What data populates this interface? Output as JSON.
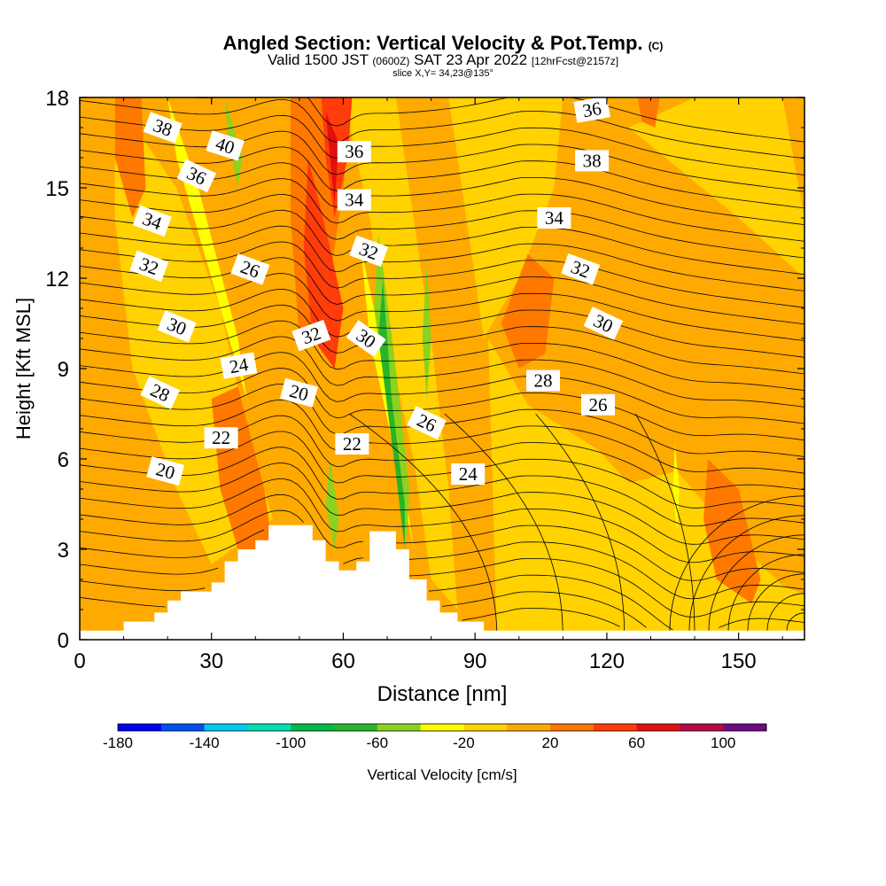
{
  "header": {
    "title": "Angled Section: Vertical Velocity & Pot.Temp.",
    "title_unit": "(C)",
    "valid_prefix": "Valid 1500 JST",
    "valid_utc": "(0600Z)",
    "valid_date": "SAT 23 Apr 2022",
    "forecast": "[12hrFcst@2157z]",
    "slice": "slice X,Y= 34,23@135°"
  },
  "chart_data": {
    "type": "heatmap",
    "title": "Angled Section: Vertical Velocity & Pot.Temp.",
    "xlabel": "Distance [nm]",
    "ylabel": "Height [Kft MSL]",
    "xlim": [
      0,
      165
    ],
    "ylim": [
      0,
      18
    ],
    "x_ticks": [
      "0",
      "30",
      "60",
      "90",
      "120",
      "150"
    ],
    "y_ticks": [
      "0",
      "3",
      "6",
      "9",
      "12",
      "15",
      "18"
    ],
    "colorbar": {
      "label": "Vertical Velocity [cm/s]",
      "tick_labels": [
        "-180",
        "-140",
        "-100",
        "-60",
        "-20",
        "20",
        "60",
        "100"
      ],
      "bins": [
        -180,
        -160,
        -140,
        -120,
        -100,
        -80,
        -60,
        -40,
        -20,
        0,
        20,
        40,
        60,
        80,
        100,
        120
      ],
      "colors": [
        "#0000f0",
        "#0050f0",
        "#00c8f0",
        "#00e0b4",
        "#00b846",
        "#28b428",
        "#8cd21e",
        "#ffff00",
        "#ffd200",
        "#ffaa00",
        "#ff7800",
        "#ff3c0a",
        "#e10f0f",
        "#b40a46",
        "#6e0a82"
      ]
    },
    "terrain": [
      [
        0,
        0.3
      ],
      [
        10,
        0.3
      ],
      [
        10,
        0.6
      ],
      [
        17,
        0.6
      ],
      [
        17,
        0.9
      ],
      [
        20,
        0.9
      ],
      [
        20,
        1.3
      ],
      [
        23,
        1.3
      ],
      [
        23,
        1.6
      ],
      [
        30,
        1.6
      ],
      [
        30,
        1.9
      ],
      [
        33,
        1.9
      ],
      [
        33,
        2.6
      ],
      [
        36,
        2.6
      ],
      [
        36,
        3.0
      ],
      [
        40,
        3.0
      ],
      [
        40,
        3.3
      ],
      [
        43,
        3.3
      ],
      [
        43,
        3.8
      ],
      [
        53,
        3.8
      ],
      [
        53,
        3.3
      ],
      [
        56,
        3.3
      ],
      [
        56,
        2.6
      ],
      [
        59,
        2.6
      ],
      [
        59,
        2.3
      ],
      [
        63,
        2.3
      ],
      [
        63,
        2.6
      ],
      [
        66,
        2.6
      ],
      [
        66,
        3.6
      ],
      [
        72,
        3.6
      ],
      [
        72,
        3.0
      ],
      [
        75,
        3.0
      ],
      [
        75,
        2.0
      ],
      [
        79,
        2.0
      ],
      [
        79,
        1.3
      ],
      [
        82,
        1.3
      ],
      [
        82,
        0.9
      ],
      [
        86,
        0.9
      ],
      [
        86,
        0.6
      ],
      [
        92,
        0.6
      ],
      [
        92,
        0.3
      ],
      [
        165,
        0.3
      ]
    ],
    "theta_contour_labels": [
      "20",
      "22",
      "24",
      "26",
      "28",
      "30",
      "32",
      "34",
      "36",
      "38",
      "40"
    ],
    "velocity_regions": [
      {
        "bin": "0 to 20",
        "points": [
          [
            0,
            0
          ],
          [
            165,
            0
          ],
          [
            165,
            18
          ],
          [
            0,
            18
          ]
        ]
      },
      {
        "bin": "-20 to 0",
        "points": [
          [
            8,
            18
          ],
          [
            22,
            15
          ],
          [
            32,
            11
          ],
          [
            38,
            7
          ],
          [
            44,
            4
          ],
          [
            30,
            2.5
          ],
          [
            22,
            5
          ],
          [
            12,
            9
          ],
          [
            8,
            14
          ]
        ]
      },
      {
        "bin": "-20 to 0",
        "points": [
          [
            60,
            18
          ],
          [
            66,
            14
          ],
          [
            70,
            10
          ],
          [
            76,
            6
          ],
          [
            80,
            2
          ],
          [
            86,
            1
          ],
          [
            84,
            5
          ],
          [
            80,
            10
          ],
          [
            76,
            14
          ],
          [
            72,
            18
          ]
        ]
      },
      {
        "bin": "-20 to 0",
        "points": [
          [
            84,
            18
          ],
          [
            110,
            18
          ],
          [
            108,
            15
          ],
          [
            100,
            12
          ],
          [
            92,
            10
          ],
          [
            88,
            14
          ]
        ]
      },
      {
        "bin": "-20 to 0",
        "points": [
          [
            93,
            10
          ],
          [
            102,
            7.8
          ],
          [
            118,
            6.3
          ],
          [
            125,
            5.2
          ],
          [
            136,
            5.6
          ],
          [
            150,
            3.2
          ],
          [
            160,
            1.8
          ],
          [
            165,
            1.5
          ],
          [
            165,
            0
          ],
          [
            95,
            0
          ]
        ]
      },
      {
        "bin": "-20 to 0",
        "points": [
          [
            125,
            17
          ],
          [
            140,
            18
          ],
          [
            160,
            18
          ],
          [
            165,
            14
          ],
          [
            165,
            12
          ],
          [
            150,
            14
          ]
        ]
      },
      {
        "bin": "-40 to -20",
        "points": [
          [
            20,
            18
          ],
          [
            27,
            15
          ],
          [
            36,
            10
          ],
          [
            40,
            6
          ],
          [
            38,
            8
          ],
          [
            30,
            12
          ],
          [
            22,
            16
          ]
        ]
      },
      {
        "bin": "-40 to -20",
        "points": [
          [
            64,
            13
          ],
          [
            70,
            9
          ],
          [
            74,
            5
          ],
          [
            76,
            3
          ],
          [
            72,
            6
          ],
          [
            66,
            10
          ]
        ]
      },
      {
        "bin": "-40 to -20",
        "points": [
          [
            135.5,
            6.5
          ],
          [
            136.5,
            5
          ],
          [
            136,
            3.6
          ],
          [
            135,
            5
          ]
        ]
      },
      {
        "bin": "-60 to -40",
        "points": [
          [
            33,
            18
          ],
          [
            37,
            16
          ],
          [
            36,
            15
          ],
          [
            34,
            16.5
          ]
        ]
      },
      {
        "bin": "-60 to -40",
        "points": [
          [
            57,
            6
          ],
          [
            59,
            4
          ],
          [
            58,
            3
          ],
          [
            56,
            4.5
          ]
        ]
      },
      {
        "bin": "-60 to -40",
        "points": [
          [
            68,
            13.5
          ],
          [
            72,
            9
          ],
          [
            75,
            5
          ],
          [
            74.5,
            3.2
          ],
          [
            72,
            6
          ],
          [
            67,
            11
          ]
        ]
      },
      {
        "bin": "-60 to -40",
        "points": [
          [
            79,
            12.5
          ],
          [
            80,
            10
          ],
          [
            79,
            8
          ],
          [
            78,
            10
          ]
        ]
      },
      {
        "bin": "-80 to -60",
        "points": [
          [
            69,
            12
          ],
          [
            71,
            8
          ],
          [
            74,
            4.5
          ],
          [
            74,
            3
          ],
          [
            72,
            5.5
          ],
          [
            68,
            10
          ]
        ]
      },
      {
        "bin": "20 to 40",
        "points": [
          [
            8,
            18
          ],
          [
            14,
            18
          ],
          [
            15,
            15
          ],
          [
            12,
            14
          ],
          [
            8,
            16
          ]
        ]
      },
      {
        "bin": "20 to 40",
        "points": [
          [
            30,
            8
          ],
          [
            36,
            8.4
          ],
          [
            42,
            5
          ],
          [
            44,
            3
          ],
          [
            36,
            3
          ],
          [
            32,
            5
          ]
        ]
      },
      {
        "bin": "20 to 40",
        "points": [
          [
            48,
            18
          ],
          [
            62,
            18
          ],
          [
            60,
            15
          ],
          [
            56,
            11
          ],
          [
            50,
            10
          ],
          [
            48,
            14
          ]
        ]
      },
      {
        "bin": "20 to 40",
        "points": [
          [
            96,
            10.5
          ],
          [
            102,
            12.8
          ],
          [
            108,
            12
          ],
          [
            106,
            9.5
          ],
          [
            100,
            9
          ]
        ]
      },
      {
        "bin": "20 to 40",
        "points": [
          [
            143,
            6
          ],
          [
            150,
            5
          ],
          [
            155,
            2
          ],
          [
            153,
            1.2
          ],
          [
            145,
            2
          ],
          [
            142,
            4
          ]
        ]
      },
      {
        "bin": "20 to 40",
        "points": [
          [
            127,
            18
          ],
          [
            132,
            18
          ],
          [
            131,
            17
          ],
          [
            128,
            17.2
          ]
        ]
      },
      {
        "bin": "40 to 60",
        "points": [
          [
            52,
            16
          ],
          [
            57,
            13
          ],
          [
            60,
            11
          ],
          [
            58,
            9
          ],
          [
            53,
            10
          ],
          [
            51,
            13
          ]
        ]
      },
      {
        "bin": "40 to 60",
        "points": [
          [
            55,
            18
          ],
          [
            62,
            18
          ],
          [
            61,
            16
          ],
          [
            58,
            14
          ],
          [
            56,
            16
          ]
        ]
      },
      {
        "bin": "60 to 80",
        "points": [
          [
            56,
            17.5
          ],
          [
            58,
            14.5
          ],
          [
            59,
            16.5
          ],
          [
            57.5,
            17
          ]
        ]
      }
    ]
  }
}
